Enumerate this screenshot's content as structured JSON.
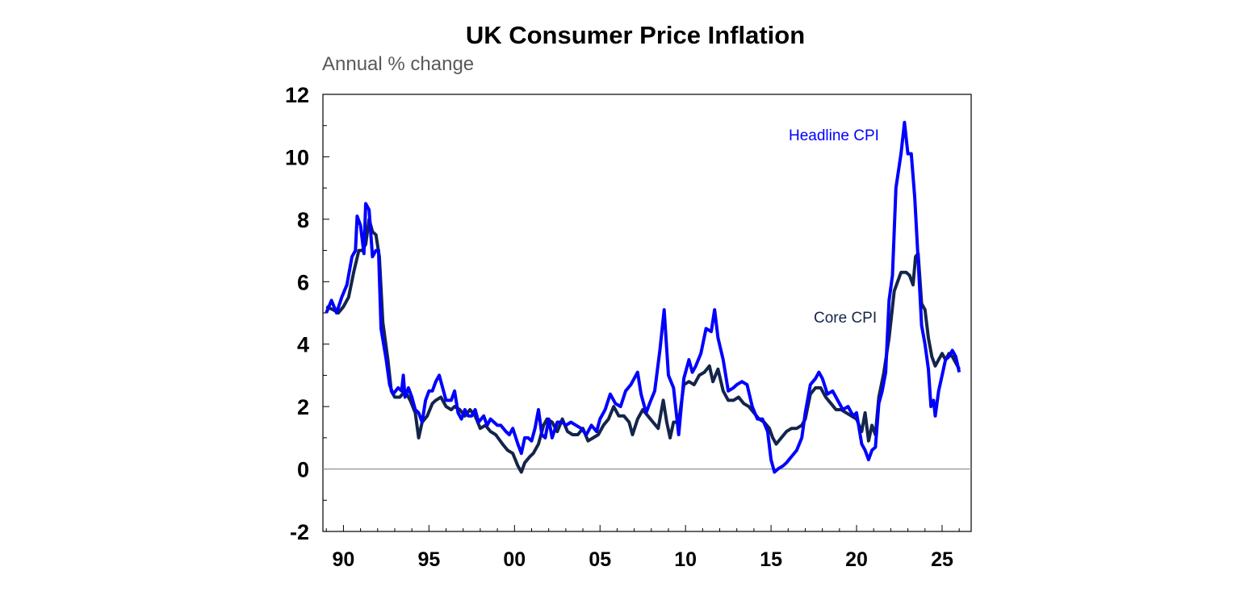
{
  "chart_data": {
    "type": "line",
    "title": "UK Consumer Price Inflation",
    "subtitle": "Annual % change",
    "xlabel": "",
    "ylabel": "",
    "ylim": [
      -2,
      12
    ],
    "xlim": [
      1988.8,
      2026.7
    ],
    "yticks": [
      "12",
      "10",
      "8",
      "6",
      "4",
      "2",
      "0",
      "-2"
    ],
    "ytick_values": [
      12,
      10,
      8,
      6,
      4,
      2,
      0,
      -2
    ],
    "xticks": [
      "90",
      "95",
      "00",
      "05",
      "10",
      "15",
      "20",
      "25"
    ],
    "xtick_values": [
      1990,
      1995,
      2000,
      2005,
      2010,
      2015,
      2020,
      2025
    ],
    "grid": false,
    "zero_line": true,
    "series": [
      {
        "name": "Headline CPI",
        "color": "#0000ff",
        "points": [
          [
            1989.0,
            5.0
          ],
          [
            1989.3,
            5.4
          ],
          [
            1989.6,
            5.0
          ],
          [
            1989.9,
            5.5
          ],
          [
            1990.2,
            5.9
          ],
          [
            1990.5,
            6.8
          ],
          [
            1990.7,
            7.0
          ],
          [
            1990.8,
            8.1
          ],
          [
            1991.0,
            7.8
          ],
          [
            1991.2,
            6.9
          ],
          [
            1991.3,
            8.5
          ],
          [
            1991.5,
            8.3
          ],
          [
            1991.7,
            6.8
          ],
          [
            1991.9,
            7.0
          ],
          [
            1992.05,
            7.0
          ],
          [
            1992.2,
            4.5
          ],
          [
            1992.5,
            3.5
          ],
          [
            1992.7,
            2.7
          ],
          [
            1992.9,
            2.4
          ],
          [
            1993.2,
            2.6
          ],
          [
            1993.4,
            2.5
          ],
          [
            1993.5,
            3.0
          ],
          [
            1993.6,
            2.3
          ],
          [
            1993.8,
            2.6
          ],
          [
            1994.0,
            2.3
          ],
          [
            1994.2,
            1.9
          ],
          [
            1994.4,
            1.8
          ],
          [
            1994.6,
            1.5
          ],
          [
            1994.8,
            2.2
          ],
          [
            1995.0,
            2.5
          ],
          [
            1995.2,
            2.5
          ],
          [
            1995.4,
            2.8
          ],
          [
            1995.6,
            3.0
          ],
          [
            1995.8,
            2.6
          ],
          [
            1996.0,
            2.2
          ],
          [
            1996.3,
            2.2
          ],
          [
            1996.5,
            2.5
          ],
          [
            1996.7,
            1.8
          ],
          [
            1996.9,
            1.6
          ],
          [
            1997.1,
            1.9
          ],
          [
            1997.3,
            1.7
          ],
          [
            1997.5,
            1.7
          ],
          [
            1997.7,
            1.9
          ],
          [
            1997.9,
            1.5
          ],
          [
            1998.2,
            1.7
          ],
          [
            1998.4,
            1.4
          ],
          [
            1998.6,
            1.6
          ],
          [
            1998.8,
            1.5
          ],
          [
            1999.0,
            1.4
          ],
          [
            1999.2,
            1.4
          ],
          [
            1999.5,
            1.2
          ],
          [
            1999.7,
            1.1
          ],
          [
            1999.9,
            1.3
          ],
          [
            2000.2,
            0.8
          ],
          [
            2000.4,
            0.5
          ],
          [
            2000.6,
            1.0
          ],
          [
            2000.8,
            1.0
          ],
          [
            2001.0,
            0.9
          ],
          [
            2001.2,
            1.3
          ],
          [
            2001.4,
            1.9
          ],
          [
            2001.6,
            1.1
          ],
          [
            2001.8,
            1.0
          ],
          [
            2002.0,
            1.6
          ],
          [
            2002.2,
            1.0
          ],
          [
            2002.5,
            1.5
          ],
          [
            2002.8,
            1.5
          ],
          [
            2003.0,
            1.4
          ],
          [
            2003.3,
            1.5
          ],
          [
            2003.6,
            1.4
          ],
          [
            2003.9,
            1.3
          ],
          [
            2004.2,
            1.1
          ],
          [
            2004.5,
            1.4
          ],
          [
            2004.8,
            1.2
          ],
          [
            2005.0,
            1.6
          ],
          [
            2005.3,
            1.9
          ],
          [
            2005.6,
            2.4
          ],
          [
            2005.9,
            2.1
          ],
          [
            2006.2,
            2.0
          ],
          [
            2006.5,
            2.5
          ],
          [
            2006.8,
            2.7
          ],
          [
            2007.0,
            2.9
          ],
          [
            2007.2,
            3.1
          ],
          [
            2007.4,
            2.4
          ],
          [
            2007.7,
            1.8
          ],
          [
            2007.9,
            2.1
          ],
          [
            2008.2,
            2.5
          ],
          [
            2008.5,
            3.8
          ],
          [
            2008.75,
            5.1
          ],
          [
            2009.0,
            3.0
          ],
          [
            2009.3,
            2.6
          ],
          [
            2009.6,
            1.1
          ],
          [
            2009.9,
            2.9
          ],
          [
            2010.2,
            3.5
          ],
          [
            2010.4,
            3.1
          ],
          [
            2010.6,
            3.3
          ],
          [
            2010.9,
            3.7
          ],
          [
            2011.2,
            4.5
          ],
          [
            2011.5,
            4.4
          ],
          [
            2011.7,
            5.1
          ],
          [
            2011.9,
            4.2
          ],
          [
            2012.2,
            3.5
          ],
          [
            2012.5,
            2.5
          ],
          [
            2012.8,
            2.6
          ],
          [
            2013.0,
            2.7
          ],
          [
            2013.3,
            2.8
          ],
          [
            2013.6,
            2.7
          ],
          [
            2013.9,
            2.0
          ],
          [
            2014.2,
            1.6
          ],
          [
            2014.5,
            1.6
          ],
          [
            2014.8,
            1.2
          ],
          [
            2015.0,
            0.3
          ],
          [
            2015.2,
            -0.1
          ],
          [
            2015.4,
            0.0
          ],
          [
            2015.7,
            0.1
          ],
          [
            2015.9,
            0.2
          ],
          [
            2016.2,
            0.4
          ],
          [
            2016.5,
            0.6
          ],
          [
            2016.8,
            1.0
          ],
          [
            2017.0,
            1.8
          ],
          [
            2017.3,
            2.7
          ],
          [
            2017.6,
            2.9
          ],
          [
            2017.8,
            3.1
          ],
          [
            2018.0,
            2.9
          ],
          [
            2018.3,
            2.4
          ],
          [
            2018.6,
            2.5
          ],
          [
            2018.9,
            2.2
          ],
          [
            2019.2,
            1.9
          ],
          [
            2019.5,
            2.0
          ],
          [
            2019.8,
            1.7
          ],
          [
            2020.0,
            1.8
          ],
          [
            2020.3,
            0.8
          ],
          [
            2020.5,
            0.6
          ],
          [
            2020.7,
            0.3
          ],
          [
            2020.9,
            0.6
          ],
          [
            2021.1,
            0.7
          ],
          [
            2021.3,
            2.1
          ],
          [
            2021.5,
            2.5
          ],
          [
            2021.7,
            3.1
          ],
          [
            2021.9,
            5.4
          ],
          [
            2022.1,
            6.2
          ],
          [
            2022.3,
            9.0
          ],
          [
            2022.6,
            10.1
          ],
          [
            2022.8,
            11.1
          ],
          [
            2023.0,
            10.1
          ],
          [
            2023.2,
            10.1
          ],
          [
            2023.4,
            8.7
          ],
          [
            2023.6,
            6.7
          ],
          [
            2023.8,
            4.6
          ],
          [
            2024.0,
            4.0
          ],
          [
            2024.2,
            3.2
          ],
          [
            2024.35,
            2.0
          ],
          [
            2024.5,
            2.2
          ],
          [
            2024.6,
            1.7
          ],
          [
            2024.8,
            2.5
          ],
          [
            2025.0,
            3.0
          ],
          [
            2025.2,
            3.5
          ],
          [
            2025.4,
            3.6
          ],
          [
            2025.6,
            3.8
          ],
          [
            2025.8,
            3.6
          ],
          [
            2026.0,
            3.1
          ]
        ]
      },
      {
        "name": "Core CPI",
        "color": "#14254a",
        "points": [
          [
            1989.0,
            5.2
          ],
          [
            1989.4,
            5.1
          ],
          [
            1989.7,
            5.0
          ],
          [
            1990.0,
            5.2
          ],
          [
            1990.3,
            5.5
          ],
          [
            1990.6,
            6.3
          ],
          [
            1990.9,
            7.0
          ],
          [
            1991.1,
            7.0
          ],
          [
            1991.3,
            7.2
          ],
          [
            1991.5,
            8.0
          ],
          [
            1991.7,
            7.6
          ],
          [
            1991.9,
            7.5
          ],
          [
            1992.1,
            6.8
          ],
          [
            1992.3,
            4.7
          ],
          [
            1992.6,
            3.5
          ],
          [
            1992.8,
            2.5
          ],
          [
            1993.0,
            2.3
          ],
          [
            1993.3,
            2.3
          ],
          [
            1993.6,
            2.5
          ],
          [
            1993.9,
            2.2
          ],
          [
            1994.2,
            1.8
          ],
          [
            1994.4,
            1.0
          ],
          [
            1994.6,
            1.5
          ],
          [
            1994.9,
            1.7
          ],
          [
            1995.2,
            2.1
          ],
          [
            1995.4,
            2.2
          ],
          [
            1995.7,
            2.3
          ],
          [
            1996.0,
            2.0
          ],
          [
            1996.3,
            1.9
          ],
          [
            1996.5,
            2.0
          ],
          [
            1996.8,
            1.9
          ],
          [
            1997.1,
            1.7
          ],
          [
            1997.4,
            1.9
          ],
          [
            1997.7,
            1.7
          ],
          [
            1998.0,
            1.3
          ],
          [
            1998.3,
            1.4
          ],
          [
            1998.6,
            1.2
          ],
          [
            1998.9,
            1.1
          ],
          [
            1999.3,
            0.8
          ],
          [
            1999.6,
            0.6
          ],
          [
            1999.9,
            0.5
          ],
          [
            2000.2,
            0.1
          ],
          [
            2000.4,
            -0.1
          ],
          [
            2000.6,
            0.2
          ],
          [
            2000.9,
            0.4
          ],
          [
            2001.1,
            0.5
          ],
          [
            2001.4,
            0.8
          ],
          [
            2001.7,
            1.4
          ],
          [
            2001.9,
            1.6
          ],
          [
            2002.2,
            1.5
          ],
          [
            2002.5,
            1.2
          ],
          [
            2002.8,
            1.6
          ],
          [
            2003.1,
            1.2
          ],
          [
            2003.4,
            1.1
          ],
          [
            2003.7,
            1.1
          ],
          [
            2004.0,
            1.3
          ],
          [
            2004.3,
            0.9
          ],
          [
            2004.6,
            1.0
          ],
          [
            2004.9,
            1.1
          ],
          [
            2005.2,
            1.4
          ],
          [
            2005.5,
            1.6
          ],
          [
            2005.8,
            2.0
          ],
          [
            2006.1,
            1.7
          ],
          [
            2006.4,
            1.7
          ],
          [
            2006.7,
            1.5
          ],
          [
            2006.9,
            1.1
          ],
          [
            2007.2,
            1.6
          ],
          [
            2007.5,
            1.9
          ],
          [
            2007.8,
            1.7
          ],
          [
            2008.1,
            1.5
          ],
          [
            2008.4,
            1.3
          ],
          [
            2008.7,
            2.2
          ],
          [
            2008.9,
            1.5
          ],
          [
            2009.1,
            1.0
          ],
          [
            2009.3,
            1.5
          ],
          [
            2009.6,
            1.5
          ],
          [
            2009.9,
            2.7
          ],
          [
            2010.2,
            2.8
          ],
          [
            2010.5,
            2.7
          ],
          [
            2010.8,
            3.0
          ],
          [
            2011.1,
            3.1
          ],
          [
            2011.4,
            3.3
          ],
          [
            2011.6,
            2.8
          ],
          [
            2011.9,
            3.2
          ],
          [
            2012.2,
            2.5
          ],
          [
            2012.5,
            2.2
          ],
          [
            2012.8,
            2.2
          ],
          [
            2013.1,
            2.3
          ],
          [
            2013.4,
            2.1
          ],
          [
            2013.7,
            2.0
          ],
          [
            2014.0,
            1.8
          ],
          [
            2014.3,
            1.6
          ],
          [
            2014.6,
            1.5
          ],
          [
            2014.9,
            1.3
          ],
          [
            2015.1,
            1.0
          ],
          [
            2015.3,
            0.8
          ],
          [
            2015.6,
            1.0
          ],
          [
            2015.9,
            1.2
          ],
          [
            2016.2,
            1.3
          ],
          [
            2016.5,
            1.3
          ],
          [
            2016.8,
            1.4
          ],
          [
            2017.0,
            1.6
          ],
          [
            2017.3,
            2.4
          ],
          [
            2017.6,
            2.6
          ],
          [
            2017.9,
            2.6
          ],
          [
            2018.2,
            2.3
          ],
          [
            2018.5,
            2.1
          ],
          [
            2018.8,
            1.9
          ],
          [
            2019.1,
            1.9
          ],
          [
            2019.4,
            1.8
          ],
          [
            2019.7,
            1.7
          ],
          [
            2020.0,
            1.6
          ],
          [
            2020.3,
            1.2
          ],
          [
            2020.5,
            1.8
          ],
          [
            2020.7,
            0.9
          ],
          [
            2020.9,
            1.4
          ],
          [
            2021.1,
            1.1
          ],
          [
            2021.3,
            2.3
          ],
          [
            2021.6,
            3.1
          ],
          [
            2021.9,
            4.2
          ],
          [
            2022.2,
            5.7
          ],
          [
            2022.4,
            6.0
          ],
          [
            2022.6,
            6.3
          ],
          [
            2022.9,
            6.3
          ],
          [
            2023.1,
            6.2
          ],
          [
            2023.3,
            5.9
          ],
          [
            2023.45,
            6.8
          ],
          [
            2023.6,
            6.9
          ],
          [
            2023.8,
            5.3
          ],
          [
            2024.0,
            5.1
          ],
          [
            2024.2,
            4.2
          ],
          [
            2024.4,
            3.6
          ],
          [
            2024.6,
            3.3
          ],
          [
            2024.8,
            3.5
          ],
          [
            2025.0,
            3.7
          ],
          [
            2025.2,
            3.5
          ],
          [
            2025.4,
            3.7
          ],
          [
            2025.6,
            3.6
          ],
          [
            2025.8,
            3.4
          ],
          [
            2026.0,
            3.2
          ]
        ]
      }
    ]
  }
}
